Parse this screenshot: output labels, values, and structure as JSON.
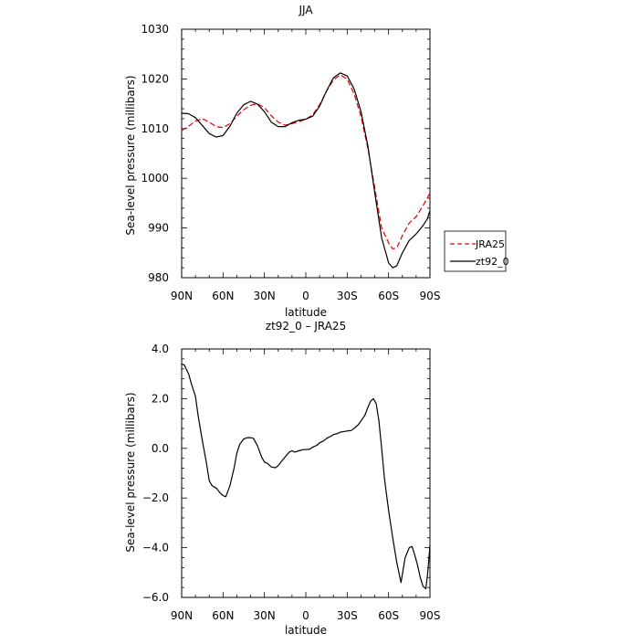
{
  "chart_data": [
    {
      "type": "line",
      "title": "JJA",
      "xlabel": "latitude",
      "ylabel": "Sea-level pressure (millibars)",
      "xlim": [
        90,
        -90
      ],
      "ylim": [
        980,
        1030
      ],
      "x_ticks": [
        {
          "value": 90,
          "label": "90N"
        },
        {
          "value": 60,
          "label": "60N"
        },
        {
          "value": 30,
          "label": "30N"
        },
        {
          "value": 0,
          "label": "0"
        },
        {
          "value": -30,
          "label": "30S"
        },
        {
          "value": -60,
          "label": "60S"
        },
        {
          "value": -90,
          "label": "90S"
        }
      ],
      "y_ticks": [
        {
          "value": 980,
          "label": "980"
        },
        {
          "value": 990,
          "label": "990"
        },
        {
          "value": 1000,
          "label": "1000"
        },
        {
          "value": 1010,
          "label": "1010"
        },
        {
          "value": 1020,
          "label": "1020"
        },
        {
          "value": 1030,
          "label": "1030"
        }
      ],
      "x_minor_step": 10,
      "y_minor_step": 2,
      "legend": {
        "placement": "right-bottom"
      },
      "series": [
        {
          "name": "JRA25",
          "color": "#e00000",
          "dash": true,
          "x": [
            90,
            85,
            80,
            75,
            70,
            65,
            60,
            55,
            50,
            45,
            40,
            35,
            30,
            25,
            20,
            15,
            10,
            5,
            0,
            -5,
            -10,
            -15,
            -20,
            -25,
            -30,
            -35,
            -40,
            -45,
            -50,
            -55,
            -60,
            -63,
            -66,
            -70,
            -75,
            -80,
            -85,
            -90
          ],
          "y": [
            1009.6,
            1010.5,
            1011.5,
            1012.0,
            1011.3,
            1010.4,
            1010.2,
            1011.0,
            1012.5,
            1013.8,
            1014.7,
            1015.0,
            1014.2,
            1012.6,
            1011.3,
            1010.7,
            1011.0,
            1011.4,
            1011.9,
            1012.8,
            1014.8,
            1017.5,
            1019.8,
            1020.8,
            1020.0,
            1017.0,
            1012.5,
            1006.0,
            998.0,
            990.0,
            987.0,
            985.8,
            986.0,
            988.5,
            991.0,
            992.3,
            994.5,
            997.0
          ]
        },
        {
          "name": "zt92_0",
          "color": "#000000",
          "dash": false,
          "x": [
            90,
            85,
            80,
            75,
            70,
            65,
            60,
            55,
            50,
            45,
            40,
            35,
            30,
            25,
            20,
            15,
            10,
            5,
            0,
            -5,
            -10,
            -15,
            -20,
            -25,
            -30,
            -35,
            -40,
            -45,
            -50,
            -55,
            -60,
            -63,
            -66,
            -70,
            -75,
            -80,
            -85,
            -88,
            -90
          ],
          "y": [
            1013.1,
            1013.0,
            1012.2,
            1010.6,
            1009.0,
            1008.3,
            1008.6,
            1010.5,
            1013.1,
            1014.8,
            1015.5,
            1014.9,
            1013.4,
            1011.3,
            1010.4,
            1010.4,
            1011.2,
            1011.7,
            1011.9,
            1012.5,
            1014.5,
            1017.6,
            1020.2,
            1021.2,
            1020.6,
            1018.0,
            1013.5,
            1006.5,
            997.0,
            988.0,
            983.0,
            982.0,
            982.4,
            985.0,
            987.5,
            988.8,
            990.5,
            991.8,
            993.5
          ]
        }
      ]
    },
    {
      "type": "line",
      "title": "zt92_0 – JRA25",
      "xlabel": "latitude",
      "ylabel": "Sea-level pressure (millibars)",
      "xlim": [
        90,
        -90
      ],
      "ylim": [
        -6,
        4
      ],
      "x_ticks": [
        {
          "value": 90,
          "label": "90N"
        },
        {
          "value": 60,
          "label": "60N"
        },
        {
          "value": 30,
          "label": "30N"
        },
        {
          "value": 0,
          "label": "0"
        },
        {
          "value": -30,
          "label": "30S"
        },
        {
          "value": -60,
          "label": "60S"
        },
        {
          "value": -90,
          "label": "90S"
        }
      ],
      "y_ticks": [
        {
          "value": -6,
          "label": "−6.0"
        },
        {
          "value": -4,
          "label": "−4.0"
        },
        {
          "value": -2,
          "label": "−2.0"
        },
        {
          "value": 0,
          "label": "0.0"
        },
        {
          "value": 2,
          "label": "2.0"
        },
        {
          "value": 4,
          "label": "4.0"
        }
      ],
      "x_minor_step": 10,
      "y_minor_step": 0.4,
      "series": [
        {
          "color": "#000000",
          "dash": false,
          "x": [
            90,
            88,
            85,
            83,
            80,
            78,
            75,
            72,
            70,
            68,
            65,
            62,
            60,
            58,
            55,
            52,
            50,
            48,
            45,
            42,
            40,
            38,
            35,
            32,
            30,
            28,
            25,
            22,
            20,
            18,
            15,
            12,
            10,
            8,
            5,
            2,
            0,
            -3,
            -5,
            -8,
            -10,
            -13,
            -15,
            -18,
            -20,
            -23,
            -25,
            -28,
            -30,
            -33,
            -35,
            -38,
            -40,
            -43,
            -45,
            -47,
            -49,
            -51,
            -53,
            -55,
            -57,
            -60,
            -63,
            -66,
            -69,
            -72,
            -75,
            -77,
            -79,
            -81,
            -83,
            -85,
            -87,
            -88,
            -89,
            -90
          ],
          "y": [
            3.4,
            3.35,
            3.0,
            2.6,
            2.1,
            1.3,
            0.3,
            -0.6,
            -1.3,
            -1.5,
            -1.6,
            -1.8,
            -1.9,
            -1.95,
            -1.5,
            -0.8,
            -0.2,
            0.15,
            0.38,
            0.43,
            0.43,
            0.4,
            0.1,
            -0.35,
            -0.55,
            -0.6,
            -0.75,
            -0.78,
            -0.7,
            -0.55,
            -0.35,
            -0.15,
            -0.1,
            -0.15,
            -0.1,
            -0.05,
            -0.05,
            -0.03,
            0.05,
            0.12,
            0.22,
            0.3,
            0.4,
            0.48,
            0.55,
            0.6,
            0.65,
            0.68,
            0.7,
            0.72,
            0.8,
            0.95,
            1.1,
            1.35,
            1.65,
            1.9,
            2.0,
            1.8,
            1.1,
            0.0,
            -1.2,
            -2.5,
            -3.6,
            -4.6,
            -5.4,
            -4.4,
            -4.0,
            -3.95,
            -4.3,
            -4.7,
            -5.2,
            -5.55,
            -5.65,
            -5.2,
            -4.6,
            -3.9
          ]
        }
      ]
    }
  ]
}
